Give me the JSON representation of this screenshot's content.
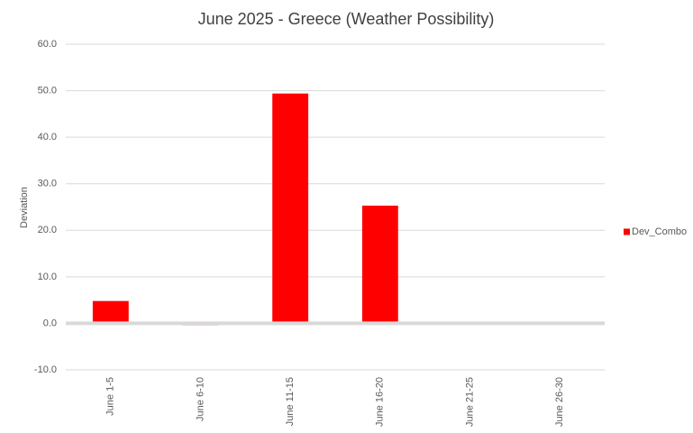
{
  "chart_data": {
    "type": "bar",
    "title": "June 2025 - Greece (Weather Possibility)",
    "y_label": "Deviation",
    "categories": [
      "June 1-5",
      "June 6-10",
      "June 11-15",
      "June 16-20",
      "June 21-25",
      "June 26-30"
    ],
    "series": [
      {
        "name": "Dev_Combo",
        "color": "#ff0000",
        "values": [
          4.8,
          -0.4,
          49.4,
          25.3,
          0,
          0
        ]
      }
    ],
    "ylim": [
      -10,
      60
    ],
    "yticks": [
      {
        "value": -10,
        "label": "-10.0"
      },
      {
        "value": 0,
        "label": "0.0"
      },
      {
        "value": 10,
        "label": "10.0"
      },
      {
        "value": 20,
        "label": "20.0"
      },
      {
        "value": 30,
        "label": "30.0"
      },
      {
        "value": 40,
        "label": "40.0"
      },
      {
        "value": 50,
        "label": "50.0"
      },
      {
        "value": 60,
        "label": "60.0"
      }
    ],
    "grid": true,
    "legend": "right"
  }
}
